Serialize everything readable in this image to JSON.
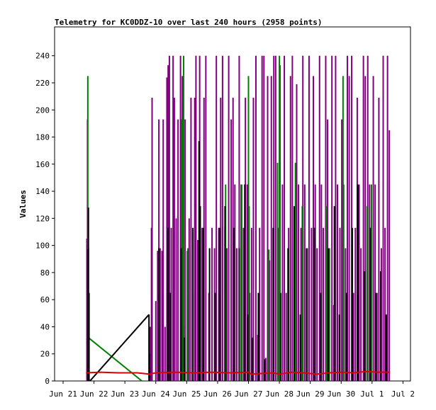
{
  "chart_data": {
    "type": "line",
    "title": "Telemetry for KC0DDZ-10 over last 240 hours (2958 points)",
    "ylabel": "Values",
    "xlabel": "",
    "xlim": [
      0,
      10
    ],
    "ylim": [
      0,
      255
    ],
    "yticks": [
      0,
      20,
      40,
      60,
      80,
      100,
      120,
      140,
      160,
      180,
      200,
      220,
      240
    ],
    "xticks": [
      {
        "x": 0,
        "label": "Jun 21"
      },
      {
        "x": 1,
        "label": "Jun 22"
      },
      {
        "x": 2,
        "label": "Jun 23"
      },
      {
        "x": 3,
        "label": "Jun 24"
      },
      {
        "x": 4,
        "label": "Jun 25"
      },
      {
        "x": 5,
        "label": "Jun 26"
      },
      {
        "x": 6,
        "label": "Jun 27"
      },
      {
        "x": 7,
        "label": "Jun 28"
      },
      {
        "x": 8,
        "label": "Jun 29"
      },
      {
        "x": 9,
        "label": "Jun 30"
      },
      {
        "x": 10,
        "label": "Jul 1"
      },
      {
        "x": 11,
        "label": "Jul 2"
      }
    ],
    "grid": false,
    "legend": "none",
    "series": [
      {
        "color": "#800080",
        "spikes": [
          [
            0.77,
            105
          ],
          [
            0.79,
            193
          ],
          [
            0.82,
            98
          ],
          [
            2.82,
            40
          ],
          [
            2.86,
            113
          ],
          [
            2.88,
            209
          ],
          [
            3.0,
            59
          ],
          [
            3.06,
            96
          ],
          [
            3.1,
            193
          ],
          [
            3.14,
            98
          ],
          [
            3.2,
            96
          ],
          [
            3.24,
            193
          ],
          [
            3.3,
            40
          ],
          [
            3.36,
            224
          ],
          [
            3.4,
            233
          ],
          [
            3.44,
            240
          ],
          [
            3.5,
            113
          ],
          [
            3.56,
            240
          ],
          [
            3.6,
            209
          ],
          [
            3.66,
            120
          ],
          [
            3.72,
            193
          ],
          [
            3.8,
            240
          ],
          [
            3.86,
            225
          ],
          [
            3.9,
            40
          ],
          [
            3.95,
            193
          ],
          [
            4.02,
            96
          ],
          [
            4.08,
            120
          ],
          [
            4.14,
            209
          ],
          [
            4.2,
            65
          ],
          [
            4.26,
            209
          ],
          [
            4.3,
            240
          ],
          [
            4.36,
            104
          ],
          [
            4.42,
            240
          ],
          [
            4.5,
            113
          ],
          [
            4.56,
            209
          ],
          [
            4.62,
            240
          ],
          [
            4.72,
            65
          ],
          [
            4.82,
            113
          ],
          [
            4.9,
            98
          ],
          [
            4.96,
            240
          ],
          [
            5.04,
            113
          ],
          [
            5.1,
            209
          ],
          [
            5.16,
            240
          ],
          [
            5.24,
            113
          ],
          [
            5.3,
            98
          ],
          [
            5.36,
            240
          ],
          [
            5.44,
            193
          ],
          [
            5.5,
            209
          ],
          [
            5.56,
            145
          ],
          [
            5.62,
            98
          ],
          [
            5.7,
            240
          ],
          [
            5.78,
            145
          ],
          [
            5.84,
            113
          ],
          [
            5.9,
            209
          ],
          [
            5.96,
            145
          ],
          [
            6.04,
            65
          ],
          [
            6.1,
            113
          ],
          [
            6.16,
            209
          ],
          [
            6.24,
            240
          ],
          [
            6.3,
            34
          ],
          [
            6.36,
            113
          ],
          [
            6.44,
            240
          ],
          [
            6.5,
            240
          ],
          [
            6.56,
            17
          ],
          [
            6.62,
            225
          ],
          [
            6.68,
            89
          ],
          [
            6.74,
            225
          ],
          [
            6.82,
            240
          ],
          [
            6.88,
            240
          ],
          [
            6.96,
            113
          ],
          [
            7.02,
            233
          ],
          [
            7.1,
            145
          ],
          [
            7.16,
            240
          ],
          [
            7.22,
            65
          ],
          [
            7.3,
            113
          ],
          [
            7.36,
            225
          ],
          [
            7.42,
            240
          ],
          [
            7.5,
            98
          ],
          [
            7.56,
            219
          ],
          [
            7.62,
            145
          ],
          [
            7.7,
            113
          ],
          [
            7.76,
            240
          ],
          [
            7.82,
            145
          ],
          [
            7.9,
            98
          ],
          [
            7.96,
            240
          ],
          [
            8.04,
            113
          ],
          [
            8.1,
            225
          ],
          [
            8.16,
            145
          ],
          [
            8.22,
            98
          ],
          [
            8.3,
            240
          ],
          [
            8.36,
            145
          ],
          [
            8.42,
            113
          ],
          [
            8.5,
            240
          ],
          [
            8.56,
            193
          ],
          [
            8.62,
            98
          ],
          [
            8.7,
            240
          ],
          [
            8.76,
            56
          ],
          [
            8.82,
            240
          ],
          [
            8.88,
            145
          ],
          [
            8.96,
            113
          ],
          [
            9.02,
            193
          ],
          [
            9.08,
            145
          ],
          [
            9.14,
            98
          ],
          [
            9.2,
            240
          ],
          [
            9.26,
            225
          ],
          [
            9.34,
            240
          ],
          [
            9.4,
            65
          ],
          [
            9.46,
            113
          ],
          [
            9.52,
            209
          ],
          [
            9.58,
            145
          ],
          [
            9.64,
            98
          ],
          [
            9.72,
            240
          ],
          [
            9.78,
            225
          ],
          [
            9.86,
            240
          ],
          [
            9.92,
            145
          ],
          [
            9.98,
            113
          ],
          [
            10.04,
            225
          ],
          [
            10.1,
            145
          ],
          [
            10.16,
            65
          ],
          [
            10.22,
            209
          ],
          [
            10.3,
            98
          ],
          [
            10.36,
            240
          ],
          [
            10.42,
            113
          ],
          [
            10.5,
            240
          ],
          [
            10.56,
            185
          ]
        ]
      },
      {
        "color": "#008000",
        "spikes": [
          [
            0.8,
            225
          ],
          [
            3.84,
            193
          ],
          [
            3.9,
            240
          ],
          [
            4.04,
            98
          ],
          [
            5.26,
            145
          ],
          [
            5.76,
            145
          ],
          [
            6.0,
            225
          ],
          [
            6.02,
            129
          ],
          [
            6.66,
            97
          ],
          [
            6.94,
            161
          ],
          [
            7.0,
            240
          ],
          [
            7.52,
            161
          ],
          [
            7.74,
            129
          ],
          [
            8.52,
            129
          ],
          [
            8.6,
            98
          ],
          [
            9.06,
            225
          ],
          [
            9.84,
            129
          ],
          [
            9.98,
            145
          ]
        ],
        "line": [
          [
            0.82,
            32
          ],
          [
            2.55,
            0
          ]
        ]
      },
      {
        "color": "#000000",
        "spikes": [
          [
            0.8,
            97
          ],
          [
            0.82,
            128
          ],
          [
            0.84,
            65
          ],
          [
            2.78,
            49
          ],
          [
            2.8,
            20
          ],
          [
            3.1,
            98
          ],
          [
            3.4,
            113
          ],
          [
            3.46,
            65
          ],
          [
            3.82,
            98
          ],
          [
            3.92,
            32
          ],
          [
            4.2,
            113
          ],
          [
            4.4,
            177
          ],
          [
            4.44,
            129
          ],
          [
            4.54,
            113
          ],
          [
            4.74,
            98
          ],
          [
            4.92,
            65
          ],
          [
            5.06,
            113
          ],
          [
            5.24,
            129
          ],
          [
            5.52,
            113
          ],
          [
            5.7,
            98
          ],
          [
            5.88,
            145
          ],
          [
            5.98,
            49
          ],
          [
            6.12,
            32
          ],
          [
            6.32,
            65
          ],
          [
            6.52,
            16
          ],
          [
            6.8,
            113
          ],
          [
            7.04,
            65
          ],
          [
            7.28,
            98
          ],
          [
            7.48,
            129
          ],
          [
            7.68,
            49
          ],
          [
            7.88,
            98
          ],
          [
            8.14,
            113
          ],
          [
            8.34,
            65
          ],
          [
            8.58,
            98
          ],
          [
            8.78,
            129
          ],
          [
            8.94,
            49
          ],
          [
            9.18,
            65
          ],
          [
            9.36,
            113
          ],
          [
            9.54,
            145
          ],
          [
            9.76,
            81
          ],
          [
            9.94,
            113
          ],
          [
            10.12,
            65
          ],
          [
            10.28,
            81
          ],
          [
            10.46,
            49
          ]
        ],
        "line": [
          [
            0.87,
            0
          ],
          [
            2.78,
            49
          ]
        ]
      },
      {
        "color": "#dd0000",
        "line": [
          [
            0.74,
            6
          ],
          [
            1.2,
            6.5
          ],
          [
            1.8,
            6
          ],
          [
            2.4,
            6
          ],
          [
            2.8,
            5
          ],
          [
            3.0,
            6
          ],
          [
            3.6,
            6.5
          ],
          [
            4.2,
            6
          ],
          [
            4.8,
            6.5
          ],
          [
            5.4,
            6
          ],
          [
            6.0,
            6.5
          ],
          [
            6.1,
            5
          ],
          [
            6.4,
            5.5
          ],
          [
            6.8,
            6
          ],
          [
            7.0,
            5
          ],
          [
            7.4,
            6.5
          ],
          [
            7.8,
            6
          ],
          [
            8.2,
            5
          ],
          [
            8.6,
            6
          ],
          [
            9.0,
            6.5
          ],
          [
            9.4,
            6
          ],
          [
            9.8,
            7
          ],
          [
            10.2,
            6.5
          ],
          [
            10.58,
            6.5
          ]
        ]
      }
    ]
  }
}
